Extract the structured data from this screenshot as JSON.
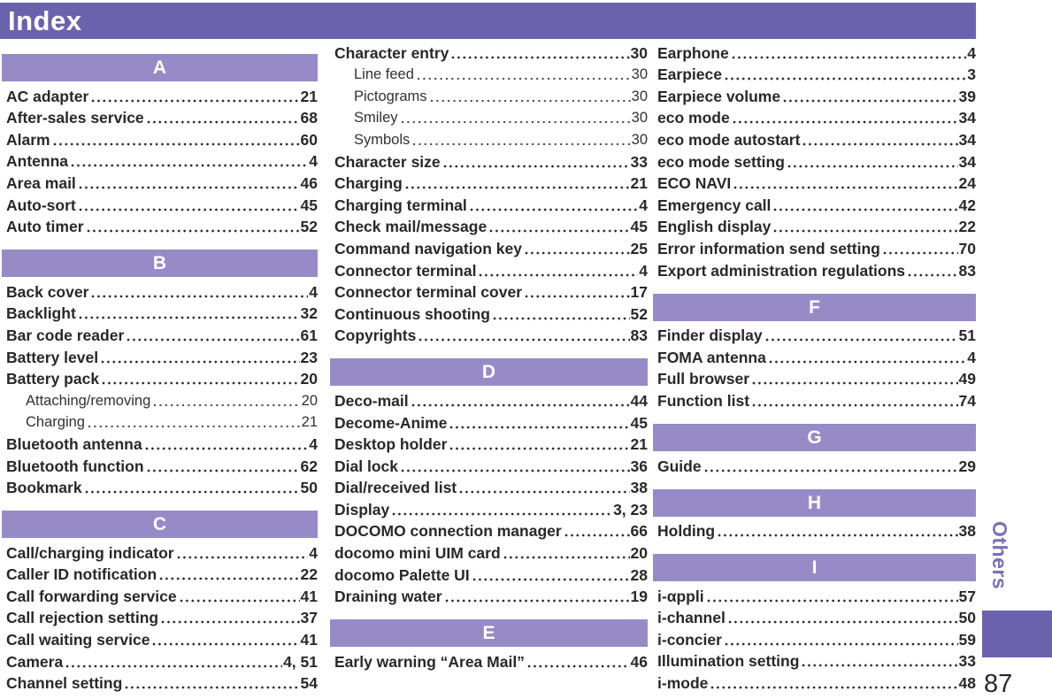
{
  "header": {
    "title": "Index"
  },
  "side": {
    "tab_label": "Others",
    "page_number": "87"
  },
  "colors": {
    "header_bg": "#6b62ae",
    "section_bg": "#978bc7",
    "text": "#2b2728",
    "tab_text": "#7b6fb8"
  },
  "columns": [
    [
      {
        "type": "section",
        "letter": "A"
      },
      {
        "type": "entry",
        "label": "AC adapter",
        "page": "21"
      },
      {
        "type": "entry",
        "label": "After-sales service",
        "page": "68"
      },
      {
        "type": "entry",
        "label": "Alarm",
        "page": "60"
      },
      {
        "type": "entry",
        "label": "Antenna",
        "page": "4"
      },
      {
        "type": "entry",
        "label": "Area mail",
        "page": "46"
      },
      {
        "type": "entry",
        "label": "Auto-sort",
        "page": "45"
      },
      {
        "type": "entry",
        "label": "Auto timer",
        "page": "52"
      },
      {
        "type": "section",
        "letter": "B"
      },
      {
        "type": "entry",
        "label": "Back cover",
        "page": "4"
      },
      {
        "type": "entry",
        "label": "Backlight",
        "page": "32"
      },
      {
        "type": "entry",
        "label": "Bar code reader",
        "page": "61"
      },
      {
        "type": "entry",
        "label": "Battery level",
        "page": "23"
      },
      {
        "type": "entry",
        "label": "Battery pack",
        "page": "20"
      },
      {
        "type": "entry",
        "label": "Attaching/removing",
        "page": "20",
        "sub": true
      },
      {
        "type": "entry",
        "label": "Charging",
        "page": "21",
        "sub": true
      },
      {
        "type": "entry",
        "label": "Bluetooth antenna",
        "page": "4"
      },
      {
        "type": "entry",
        "label": "Bluetooth function",
        "page": "62"
      },
      {
        "type": "entry",
        "label": "Bookmark",
        "page": "50"
      },
      {
        "type": "section",
        "letter": "C"
      },
      {
        "type": "entry",
        "label": "Call/charging indicator",
        "page": "4"
      },
      {
        "type": "entry",
        "label": "Caller ID notification",
        "page": "22"
      },
      {
        "type": "entry",
        "label": "Call forwarding service",
        "page": "41"
      },
      {
        "type": "entry",
        "label": "Call rejection setting",
        "page": "37"
      },
      {
        "type": "entry",
        "label": "Call waiting service",
        "page": "41"
      },
      {
        "type": "entry",
        "label": "Camera",
        "page": "4, 51"
      },
      {
        "type": "entry",
        "label": "Channel setting",
        "page": "54"
      }
    ],
    [
      {
        "type": "entry",
        "label": "Character entry",
        "page": "30"
      },
      {
        "type": "entry",
        "label": "Line feed",
        "page": "30",
        "sub": true
      },
      {
        "type": "entry",
        "label": "Pictograms",
        "page": "30",
        "sub": true
      },
      {
        "type": "entry",
        "label": "Smiley",
        "page": "30",
        "sub": true
      },
      {
        "type": "entry",
        "label": "Symbols",
        "page": "30",
        "sub": true
      },
      {
        "type": "entry",
        "label": "Character size",
        "page": "33"
      },
      {
        "type": "entry",
        "label": "Charging",
        "page": "21"
      },
      {
        "type": "entry",
        "label": "Charging terminal",
        "page": "4"
      },
      {
        "type": "entry",
        "label": "Check mail/message",
        "page": "45"
      },
      {
        "type": "entry",
        "label": "Command navigation key",
        "page": "25"
      },
      {
        "type": "entry",
        "label": "Connector terminal",
        "page": "4"
      },
      {
        "type": "entry",
        "label": "Connector terminal cover",
        "page": "17"
      },
      {
        "type": "entry",
        "label": "Continuous shooting",
        "page": "52"
      },
      {
        "type": "entry",
        "label": "Copyrights",
        "page": "83"
      },
      {
        "type": "section",
        "letter": "D"
      },
      {
        "type": "entry",
        "label": "Deco-mail",
        "page": "44"
      },
      {
        "type": "entry",
        "label": "Decome-Anime",
        "page": "45"
      },
      {
        "type": "entry",
        "label": "Desktop holder",
        "page": "21"
      },
      {
        "type": "entry",
        "label": "Dial lock",
        "page": "36"
      },
      {
        "type": "entry",
        "label": "Dial/received list",
        "page": "38"
      },
      {
        "type": "entry",
        "label": "Display",
        "page": "3, 23"
      },
      {
        "type": "entry",
        "label": "DOCOMO connection manager",
        "page": "66"
      },
      {
        "type": "entry",
        "label": "docomo mini UIM card",
        "page": "20"
      },
      {
        "type": "entry",
        "label": "docomo Palette UI",
        "page": "28"
      },
      {
        "type": "entry",
        "label": "Draining water",
        "page": "19"
      },
      {
        "type": "section",
        "letter": "E"
      },
      {
        "type": "entry",
        "label": "Early warning “Area Mail”",
        "page": "46"
      }
    ],
    [
      {
        "type": "entry",
        "label": "Earphone",
        "page": "4"
      },
      {
        "type": "entry",
        "label": "Earpiece",
        "page": "3"
      },
      {
        "type": "entry",
        "label": "Earpiece volume",
        "page": "39"
      },
      {
        "type": "entry",
        "label": "eco mode",
        "page": "34"
      },
      {
        "type": "entry",
        "label": "eco mode autostart",
        "page": "34"
      },
      {
        "type": "entry",
        "label": "eco mode setting",
        "page": "34"
      },
      {
        "type": "entry",
        "label": "ECO NAVI",
        "page": "24"
      },
      {
        "type": "entry",
        "label": "Emergency call",
        "page": "42"
      },
      {
        "type": "entry",
        "label": "English display",
        "page": "22"
      },
      {
        "type": "entry",
        "label": "Error information send setting",
        "page": "70"
      },
      {
        "type": "entry",
        "label": "Export administration regulations",
        "page": "83"
      },
      {
        "type": "section",
        "letter": "F"
      },
      {
        "type": "entry",
        "label": "Finder display",
        "page": "51"
      },
      {
        "type": "entry",
        "label": "FOMA antenna",
        "page": "4"
      },
      {
        "type": "entry",
        "label": "Full browser",
        "page": "49"
      },
      {
        "type": "entry",
        "label": "Function list",
        "page": "74"
      },
      {
        "type": "section",
        "letter": "G"
      },
      {
        "type": "entry",
        "label": "Guide",
        "page": "29"
      },
      {
        "type": "section",
        "letter": "H"
      },
      {
        "type": "entry",
        "label": "Holding",
        "page": "38"
      },
      {
        "type": "section",
        "letter": "I"
      },
      {
        "type": "entry",
        "label": "i-αppli",
        "page": "57"
      },
      {
        "type": "entry",
        "label": "i-channel",
        "page": "50"
      },
      {
        "type": "entry",
        "label": "i-concier",
        "page": "59"
      },
      {
        "type": "entry",
        "label": "Illumination setting",
        "page": "33"
      },
      {
        "type": "entry",
        "label": "i-mode",
        "page": "48"
      }
    ]
  ]
}
